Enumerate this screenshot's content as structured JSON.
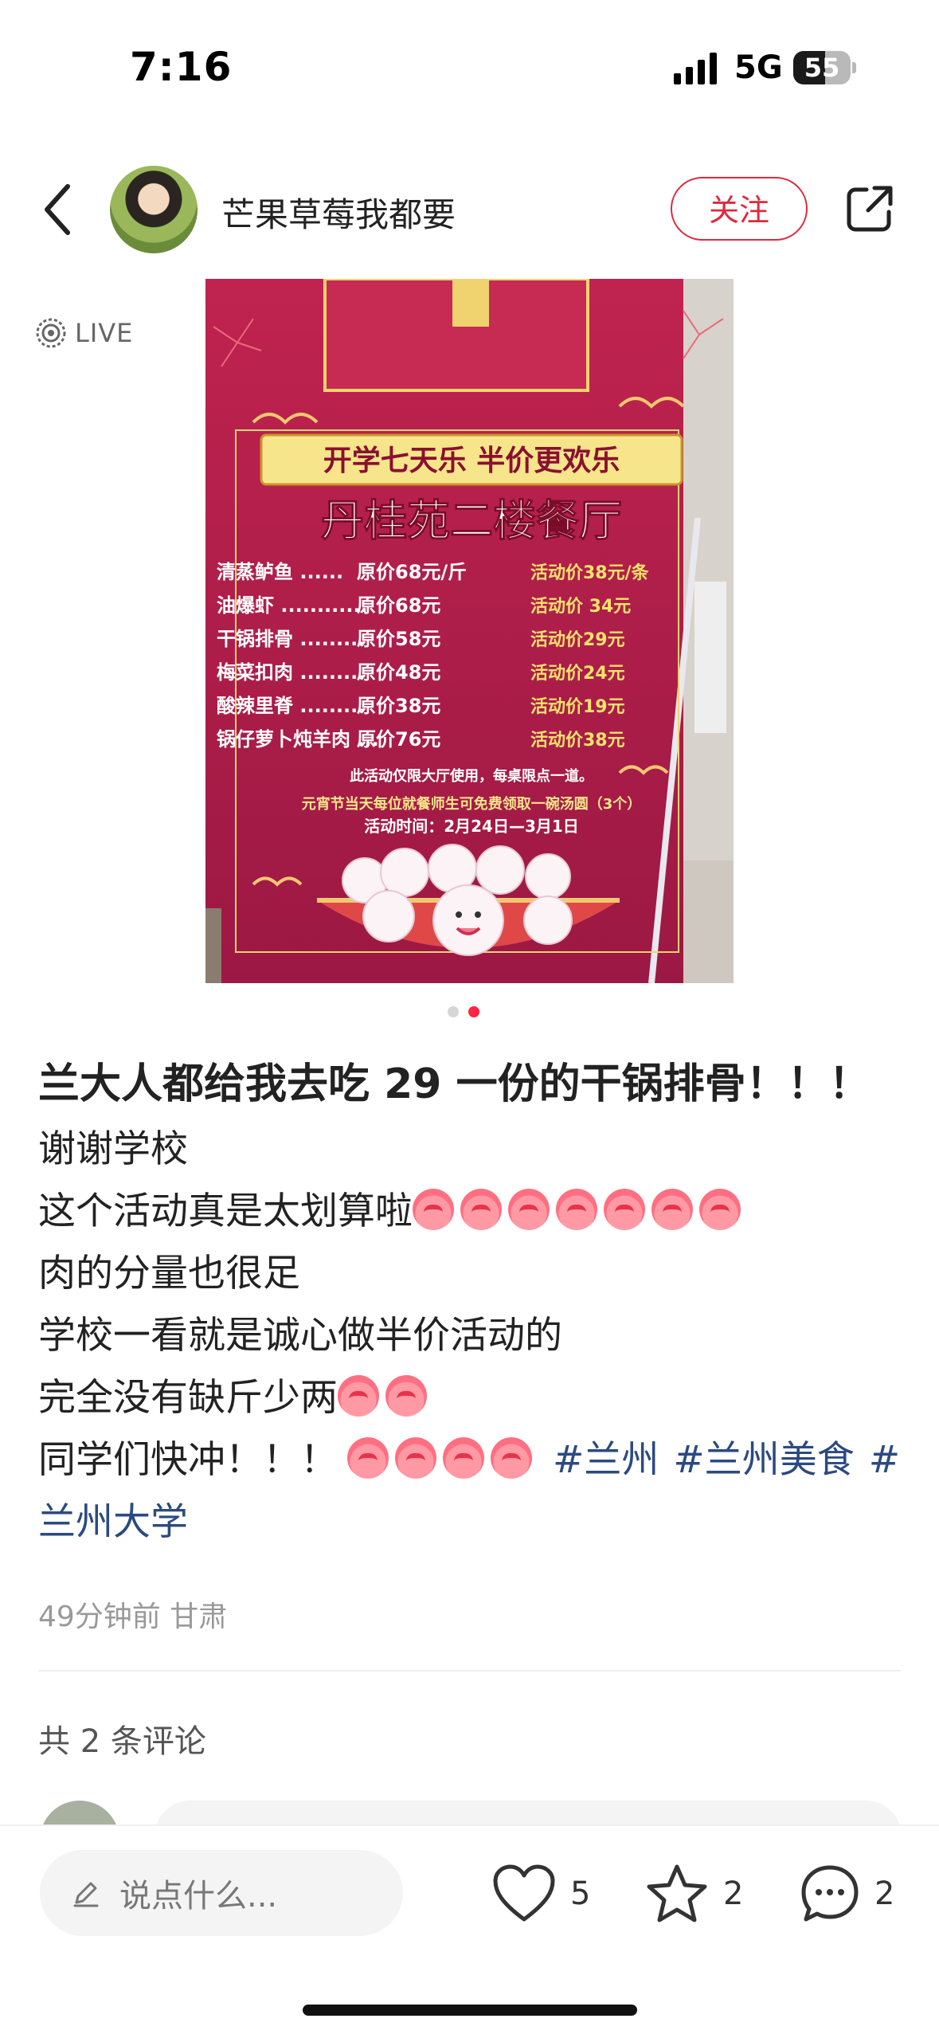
{
  "status_bar": {
    "time": "7:16",
    "network": "5G",
    "battery": "55",
    "battery_level": 0.55
  },
  "header": {
    "back_icon": "chevron-left-icon",
    "author_name": "芒果草莓我都要",
    "follow_label": "关注",
    "share_icon": "share-icon"
  },
  "media": {
    "live_label": "LIVE",
    "photo": {
      "banner_line1": "开学七天乐  半价更欢乐",
      "restaurant": "丹桂苑二楼餐厅",
      "menu": [
        {
          "name": "清蒸鲈鱼 ......",
          "original": "原价68元/斤",
          "promo": "活动价38元/条"
        },
        {
          "name": "油爆虾 ............",
          "original": "原价68元",
          "promo": "活动价 34元"
        },
        {
          "name": "干锅排骨 .........",
          "original": "原价58元",
          "promo": "活动价29元"
        },
        {
          "name": "梅菜扣肉 .........",
          "original": "原价48元",
          "promo": "活动价24元"
        },
        {
          "name": "酸辣里脊 .........",
          "original": "原价38元",
          "promo": "活动价19元"
        },
        {
          "name": "锅仔萝卜炖羊肉 ...",
          "original": "原价76元",
          "promo": "活动价38元"
        }
      ],
      "note1": "此活动仅限大厅使用，每桌限点一道。",
      "note2": "元宵节当天每位就餐师生可免费领取一碗汤圆（3个）",
      "note3": "活动时间：2月24日—3月1日"
    },
    "page_count": 2,
    "active_page": 2
  },
  "post": {
    "title": "兰大人都给我去吃 29 一份的干锅排骨！！！",
    "lines": [
      "谢谢学校",
      "这个活动真是太划算啦",
      "肉的分量也很足",
      "学校一看就是诚心做半价活动的",
      "完全没有缺斤少两",
      "同学们快冲！！！"
    ],
    "tags": [
      "#兰州",
      "#兰州美食",
      "#"
    ],
    "tag_wrap": "兰州大学",
    "meta": "49分钟前 甘肃"
  },
  "comments": {
    "count_label": "共 2 条评论"
  },
  "bottom_bar": {
    "input_placeholder": "说点什么...",
    "likes": "5",
    "collects": "2",
    "comments": "2"
  },
  "colors": {
    "accent": "#ff2442",
    "follow": "#e0283c",
    "tag": "#2b4a80",
    "poster_bg": "#b01f4f",
    "poster_gold": "#f4e36a"
  }
}
